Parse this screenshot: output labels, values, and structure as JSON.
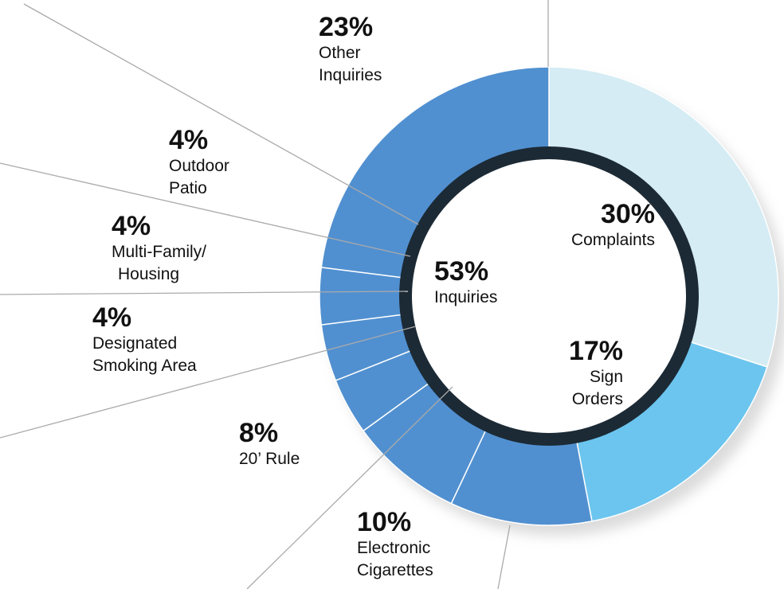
{
  "chart_data": {
    "type": "donut",
    "categories": [
      [
        "Complaints"
      ],
      [
        "Sign",
        "Orders"
      ],
      [
        "Electronic",
        "Cigarettes"
      ],
      [
        "20’ Rule"
      ],
      [
        "Designated",
        "Smoking Area"
      ],
      [
        "Multi-Family/",
        "Housing"
      ],
      [
        "Outdoor",
        "Patio"
      ],
      [
        "Other",
        "Inquiries"
      ]
    ],
    "values": [
      30,
      17,
      10,
      8,
      4,
      4,
      4,
      23
    ],
    "value_labels": [
      "30%",
      "17%",
      "10%",
      "8%",
      "4%",
      "4%",
      "4%",
      "23%"
    ],
    "colors": [
      "#d5ecf4",
      "#6cc5ee",
      "#5190d0",
      "#5190d0",
      "#5190d0",
      "#5190d0",
      "#5190d0",
      "#5190d0"
    ],
    "group": {
      "name": "Inquiries",
      "value": 53,
      "value_label": "53%"
    }
  }
}
